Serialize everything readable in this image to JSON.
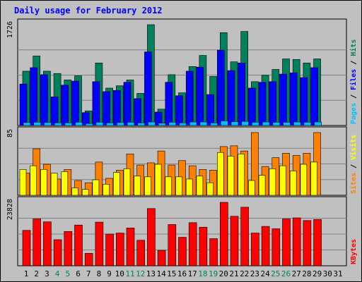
{
  "chart_data": {
    "type": "bar",
    "title": "Daily usage for February 2012",
    "x": [
      "1",
      "2",
      "3",
      "4",
      "5",
      "6",
      "7",
      "8",
      "9",
      "10",
      "11",
      "12",
      "13",
      "14",
      "15",
      "16",
      "17",
      "18",
      "19",
      "20",
      "21",
      "22",
      "23",
      "24",
      "25",
      "26",
      "27",
      "28",
      "29",
      "30",
      "31"
    ],
    "weekend_days": [
      "4",
      "5",
      "11",
      "12",
      "18",
      "19",
      "25",
      "26"
    ],
    "panels": [
      {
        "max_label": "1726",
        "ylim": [
          0,
          1726
        ],
        "series": [
          {
            "name": "Hits",
            "color": "#00805c",
            "values": [
              930,
              1190,
              930,
              890,
              780,
              850,
              250,
              1070,
              640,
              680,
              780,
              550,
              1726,
              280,
              870,
              560,
              1010,
              1200,
              840,
              1590,
              1090,
              1610,
              750,
              860,
              960,
              1140,
              1130,
              1070,
              1140,
              null,
              null
            ]
          },
          {
            "name": "Files",
            "color": "#0000ff",
            "values": [
              710,
              990,
              870,
              490,
              690,
              760,
              220,
              750,
              580,
              600,
              740,
              460,
              1260,
              230,
              740,
              510,
              930,
              1000,
              530,
              1290,
              940,
              1070,
              640,
              740,
              750,
              880,
              900,
              820,
              990,
              null,
              null
            ]
          },
          {
            "name": "Pages",
            "color": "#00c0ff",
            "values": [
              50,
              55,
              50,
              45,
              45,
              55,
              35,
              55,
              45,
              50,
              55,
              45,
              60,
              40,
              55,
              45,
              60,
              60,
              45,
              80,
              65,
              70,
              55,
              60,
              55,
              55,
              60,
              55,
              60,
              null,
              null
            ]
          }
        ],
        "legend": [
          "Pages",
          "/",
          "Files",
          "/",
          "Hits"
        ]
      },
      {
        "max_label": "85",
        "ylim": [
          0,
          85
        ],
        "series": [
          {
            "name": "Sites",
            "color": "#ff8000",
            "values": [
              30,
              63,
              42,
              22,
              35,
              20,
              17,
              45,
              23,
              34,
              56,
              41,
              44,
              60,
              41,
              47,
              40,
              35,
              34,
              66,
              67,
              60,
              85,
              39,
              51,
              57,
              54,
              57,
              85,
              null,
              null
            ]
          },
          {
            "name": "Visits",
            "color": "#ffff00",
            "values": [
              35,
              40,
              35,
              30,
              32,
              10,
              8,
              21,
              15,
              31,
              36,
              26,
              25,
              42,
              25,
              25,
              22,
              26,
              17,
              58,
              53,
              56,
              20,
              27,
              36,
              40,
              33,
              42,
              45,
              null,
              null
            ]
          }
        ],
        "legend": [
          "Sites",
          "/",
          "Visits"
        ]
      },
      {
        "max_label": "23828",
        "ylim": [
          0,
          23828
        ],
        "series": [
          {
            "name": "KBytes",
            "color": "#ff0000",
            "values": [
              13300,
              17600,
              16500,
              9800,
              12900,
              15300,
              4700,
              16400,
              11900,
              12300,
              14200,
              9600,
              21500,
              5800,
              15500,
              10700,
              16200,
              14500,
              10200,
              23828,
              18600,
              22000,
              12300,
              14800,
              13900,
              17600,
              18000,
              17000,
              17400,
              null,
              null
            ]
          }
        ],
        "legend": [
          "KBytes"
        ]
      }
    ],
    "colors": {
      "weekday_label": "#000000",
      "weekend_label": "#00805c",
      "title": "#0000ff",
      "grid": "#808080",
      "plot_bg": "#c0c0c0"
    }
  }
}
